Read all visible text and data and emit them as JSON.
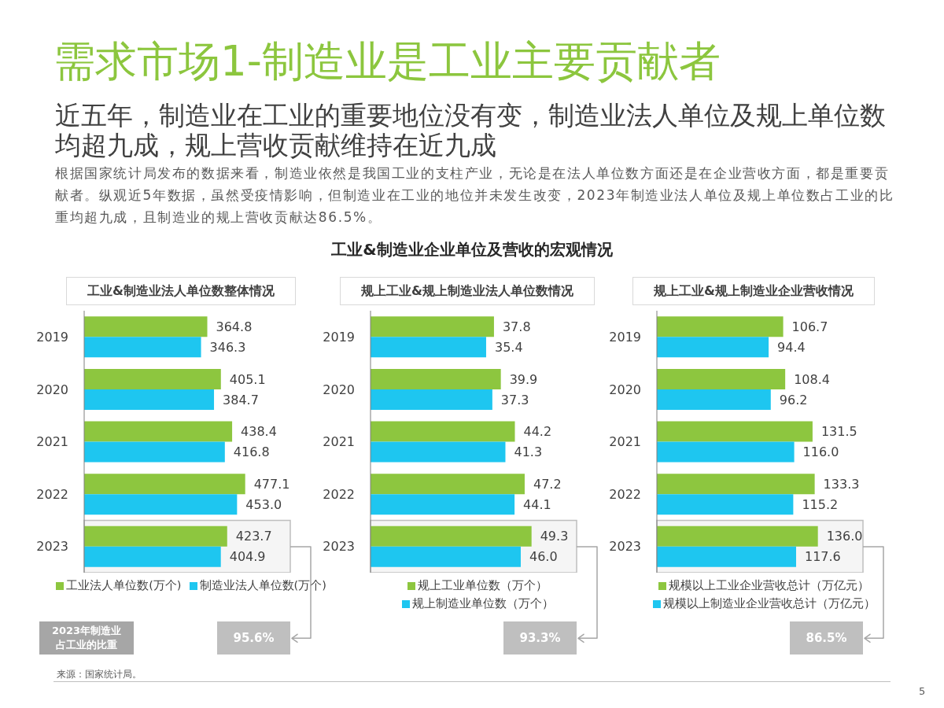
{
  "chart_data": [
    {
      "type": "other",
      "title": "需求市场1-制造业是工业主要贡献者",
      "subtitle": "近五年，制造业在工业的重要地位没有变，制造业法人单位及规上单位数均超九成，规上营收贡献维持在近九成",
      "annotations": [
        "根据国家统计局发布的数据来看，制造业依然是我国工业的支柱产业，无论是在法人单位数方面还是在企业营收方面，都是重要贡献者。纵观近5年数据，虽然受疫情影响，但制造业在工业的地位并未发生改变，2023年制造业法人单位及规上单位数占工业的比重均超九成，且制造业的规上营收贡献达86.5%。",
        "工业&制造业企业单位及营收的宏观情况",
        "来源：国家统计局。",
        "5"
      ]
    },
    {
      "type": "bar",
      "orientation": "horizontal",
      "title": "工业&制造业法人单位数整体情况",
      "categories": [
        "2019",
        "2020",
        "2021",
        "2022",
        "2023"
      ],
      "series": [
        {
          "name": "工业法人单位数(万个)",
          "color": "#8dc63f",
          "values": [
            364.8,
            405.1,
            438.4,
            477.1,
            423.7
          ],
          "value_labels": [
            "364.8",
            "405.1",
            "438.4",
            "477.1",
            "423.7"
          ]
        },
        {
          "name": "制造业法人单位数(万个)",
          "color": "#1ec6f0",
          "values": [
            346.3,
            384.7,
            416.8,
            453.0,
            404.9
          ],
          "value_labels": [
            "346.3",
            "384.7",
            "416.8",
            "453.0",
            "404.9"
          ]
        }
      ],
      "tick_labels": "y",
      "legend": "bottom",
      "bands": [
        {
          "axis": "y",
          "from": "2023",
          "to": "2023",
          "color": "#bfbfbf"
        }
      ],
      "annotations": [
        "2023年制造业占工业的比重",
        "95.6%"
      ]
    },
    {
      "type": "bar",
      "orientation": "horizontal",
      "title": "规上工业&规上制造业法人单位数情况",
      "categories": [
        "2019",
        "2020",
        "2021",
        "2022",
        "2023"
      ],
      "series": [
        {
          "name": "规上工业单位数（万个）",
          "color": "#8dc63f",
          "values": [
            37.8,
            39.9,
            44.2,
            47.2,
            49.3
          ],
          "value_labels": [
            "37.8",
            "39.9",
            "44.2",
            "47.2",
            "49.3"
          ]
        },
        {
          "name": "规上制造业单位数（万个）",
          "color": "#1ec6f0",
          "values": [
            35.4,
            37.3,
            41.3,
            44.1,
            46.0
          ],
          "value_labels": [
            "35.4",
            "37.3",
            "41.3",
            "44.1",
            "46.0"
          ]
        }
      ],
      "tick_labels": "y",
      "legend": "bottom",
      "bands": [
        {
          "axis": "y",
          "from": "2023",
          "to": "2023",
          "color": "#bfbfbf"
        }
      ],
      "annotations": [
        "93.3%"
      ]
    },
    {
      "type": "bar",
      "orientation": "horizontal",
      "title": "规上工业&规上制造业企业营收情况",
      "categories": [
        "2019",
        "2020",
        "2021",
        "2022",
        "2023"
      ],
      "series": [
        {
          "name": "规模以上工业企业营收总计（万亿元）",
          "color": "#8dc63f",
          "values": [
            106.7,
            108.4,
            131.5,
            133.3,
            136.0
          ],
          "value_labels": [
            "106.7",
            "108.4",
            "131.5",
            "133.3",
            "136.0"
          ]
        },
        {
          "name": "规模以上制造业企业营收总计（万亿元）",
          "color": "#1ec6f0",
          "values": [
            94.4,
            96.2,
            116.0,
            115.2,
            117.6
          ],
          "value_labels": [
            "94.4",
            "96.2",
            "116.0",
            "115.2",
            "117.6"
          ]
        }
      ],
      "tick_labels": "y",
      "legend": "bottom",
      "bands": [
        {
          "axis": "y",
          "from": "2023",
          "to": "2023",
          "color": "#bfbfbf"
        }
      ],
      "annotations": [
        "86.5%"
      ]
    }
  ]
}
